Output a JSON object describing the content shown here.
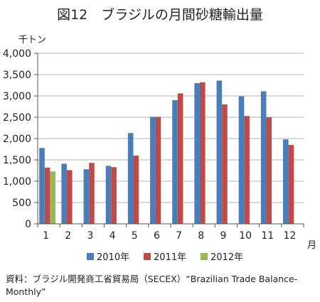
{
  "title": "図12　ブラジルの月間砂糖輸出量",
  "source": "資料：ブラジル開発商工省貿易局（SECEX）“Brazilian Trade Balance-Monthly”",
  "chart_data": {
    "type": "bar",
    "ylabel": "千トン",
    "xlabel": "月",
    "ylim": [
      0,
      4000
    ],
    "yticks": [
      0,
      500,
      1000,
      1500,
      2000,
      2500,
      3000,
      3500,
      4000
    ],
    "ytick_labels": [
      "0",
      "500",
      "1,000",
      "1,500",
      "2,000",
      "2,500",
      "3,000",
      "3,500",
      "4,000"
    ],
    "categories": [
      "1",
      "2",
      "3",
      "4",
      "5",
      "6",
      "7",
      "8",
      "9",
      "10",
      "11",
      "12"
    ],
    "grid": true,
    "legend_position": "bottom",
    "series": [
      {
        "name": "2010年",
        "color": "#4a7ebb",
        "values": [
          1780,
          1410,
          1280,
          1360,
          2130,
          2510,
          2900,
          3300,
          3360,
          2990,
          3110,
          1980
        ]
      },
      {
        "name": "2011年",
        "color": "#be4b48",
        "values": [
          1320,
          1260,
          1430,
          1330,
          1600,
          2510,
          3060,
          3320,
          2800,
          2530,
          2500,
          1850
        ]
      },
      {
        "name": "2012年",
        "color": "#98b954",
        "values": [
          1230,
          null,
          null,
          null,
          null,
          null,
          null,
          null,
          null,
          null,
          null,
          null
        ]
      }
    ]
  }
}
